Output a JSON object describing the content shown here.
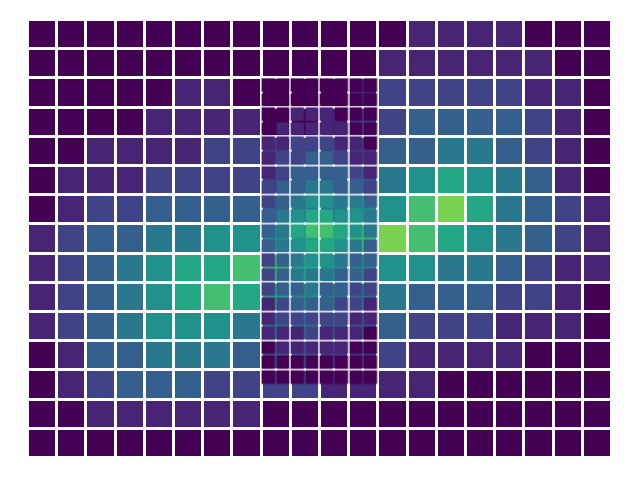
{
  "chart_data": {
    "type": "heatmap",
    "xlim": [
      0,
      20
    ],
    "ylim": [
      0,
      15
    ],
    "tick_labels": false,
    "grid": false,
    "color_range": [
      0,
      10
    ],
    "layers": [
      {
        "x": [
          0,
          1,
          2,
          3,
          4,
          5,
          6,
          7,
          8,
          9,
          10,
          11,
          12,
          13,
          14,
          15,
          16,
          17,
          18,
          19,
          20
        ],
        "y": [
          0,
          1,
          2,
          3,
          4,
          5,
          6,
          7,
          8,
          9,
          10,
          11,
          12,
          13,
          14,
          15
        ],
        "z": [
          [
            0,
            0,
            0,
            0,
            0,
            0,
            0,
            0,
            0,
            0,
            0,
            0,
            0,
            0,
            0,
            0,
            0,
            0,
            0,
            0
          ],
          [
            0,
            0,
            1,
            1,
            1,
            1,
            1,
            1,
            0,
            0,
            0,
            0,
            0,
            0,
            0,
            0,
            0,
            0,
            0,
            0
          ],
          [
            0,
            1,
            2,
            3,
            3,
            3,
            2,
            2,
            2,
            2,
            1,
            1,
            1,
            1,
            0,
            0,
            0,
            0,
            0,
            0
          ],
          [
            0,
            1,
            3,
            3,
            4,
            4,
            4,
            3,
            3,
            3,
            2,
            2,
            2,
            1,
            1,
            1,
            1,
            0,
            0,
            0
          ],
          [
            1,
            2,
            3,
            4,
            5,
            5,
            5,
            4,
            4,
            4,
            3,
            3,
            3,
            2,
            2,
            2,
            1,
            1,
            1,
            0
          ],
          [
            1,
            2,
            3,
            4,
            5,
            6,
            7,
            6,
            6,
            5,
            4,
            4,
            4,
            3,
            3,
            3,
            2,
            2,
            1,
            0
          ],
          [
            1,
            2,
            3,
            4,
            5,
            6,
            6,
            7,
            7,
            6,
            5,
            5,
            5,
            5,
            4,
            4,
            3,
            2,
            1,
            1
          ],
          [
            1,
            2,
            3,
            3,
            4,
            4,
            5,
            5,
            5,
            5,
            6,
            7,
            8,
            7,
            6,
            5,
            4,
            3,
            2,
            1
          ],
          [
            0,
            1,
            2,
            2,
            3,
            3,
            3,
            3,
            3,
            4,
            4,
            5,
            5,
            7,
            8,
            6,
            4,
            3,
            2,
            1
          ],
          [
            0,
            1,
            1,
            1,
            2,
            2,
            2,
            2,
            2,
            3,
            3,
            3,
            4,
            5,
            6,
            5,
            4,
            3,
            1,
            0
          ],
          [
            0,
            0,
            1,
            1,
            1,
            1,
            2,
            2,
            2,
            2,
            2,
            2,
            3,
            3,
            4,
            4,
            3,
            2,
            1,
            0
          ],
          [
            0,
            0,
            0,
            0,
            1,
            1,
            1,
            1,
            0,
            0,
            1,
            2,
            2,
            3,
            3,
            3,
            3,
            2,
            1,
            0
          ],
          [
            0,
            0,
            0,
            0,
            0,
            1,
            1,
            0,
            0,
            0,
            0,
            1,
            2,
            2,
            2,
            2,
            2,
            1,
            1,
            0
          ],
          [
            0,
            0,
            0,
            0,
            0,
            0,
            0,
            0,
            0,
            0,
            0,
            0,
            1,
            1,
            1,
            1,
            1,
            1,
            0,
            0
          ],
          [
            0,
            0,
            0,
            0,
            0,
            0,
            0,
            0,
            0,
            0,
            0,
            0,
            0,
            1,
            1,
            1,
            1,
            0,
            0,
            0
          ]
        ]
      },
      {
        "x": [
          8,
          8.5,
          9,
          9.5,
          10,
          10.5,
          11,
          11.5,
          12
        ],
        "y": [
          2.5,
          3,
          3.5,
          4,
          4.5,
          5,
          5.5,
          6,
          6.5,
          7,
          7.5,
          8,
          8.5,
          9,
          9.5,
          10,
          10.5,
          11,
          11.5,
          12,
          12.5,
          13
        ],
        "z": [
          [
            0,
            0,
            0,
            0,
            0,
            0,
            0,
            0
          ],
          [
            0,
            0,
            0,
            0,
            0,
            0,
            0,
            0
          ],
          [
            0,
            1,
            1,
            1,
            1,
            1,
            0,
            0
          ],
          [
            1,
            1,
            1,
            2,
            1,
            1,
            1,
            0
          ],
          [
            1,
            2,
            2,
            2,
            2,
            2,
            1,
            1
          ],
          [
            1,
            2,
            3,
            3,
            3,
            2,
            2,
            1
          ],
          [
            2,
            3,
            3,
            4,
            3,
            3,
            2,
            2
          ],
          [
            2,
            3,
            4,
            4,
            4,
            3,
            3,
            2
          ],
          [
            2,
            3,
            4,
            5,
            5,
            4,
            3,
            3
          ],
          [
            3,
            4,
            5,
            6,
            6,
            5,
            4,
            3
          ],
          [
            3,
            4,
            6,
            7,
            7,
            6,
            5,
            4
          ],
          [
            3,
            4,
            5,
            6,
            6,
            5,
            5,
            4
          ],
          [
            2,
            3,
            4,
            5,
            5,
            4,
            4,
            3
          ],
          [
            2,
            3,
            3,
            4,
            4,
            3,
            3,
            2
          ],
          [
            1,
            2,
            3,
            3,
            3,
            3,
            2,
            1
          ],
          [
            1,
            2,
            2,
            3,
            3,
            2,
            1,
            1
          ],
          [
            1,
            1,
            2,
            2,
            2,
            1,
            1,
            0
          ],
          [
            0,
            1,
            1,
            1,
            1,
            1,
            0,
            0
          ],
          [
            0,
            0,
            1,
            1,
            1,
            0,
            0,
            0
          ],
          [
            0,
            0,
            0,
            0,
            0,
            0,
            0,
            0
          ],
          [
            0,
            0,
            0,
            0,
            0,
            0,
            0,
            0
          ]
        ]
      }
    ]
  }
}
